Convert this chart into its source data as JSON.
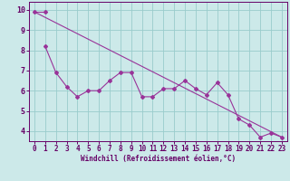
{
  "background_color": "#cce9e9",
  "grid_color": "#99cccc",
  "line_color": "#993399",
  "marker_color": "#993399",
  "xlabel": "Windchill (Refroidissement éolien,°C)",
  "xlabel_color": "#660066",
  "tick_color": "#660066",
  "spine_color": "#660066",
  "ylim": [
    3.5,
    10.4
  ],
  "xlim": [
    -0.5,
    23.5
  ],
  "yticks": [
    4,
    5,
    6,
    7,
    8,
    9,
    10
  ],
  "xticks": [
    0,
    1,
    2,
    3,
    4,
    5,
    6,
    7,
    8,
    9,
    10,
    11,
    12,
    13,
    14,
    15,
    16,
    17,
    18,
    19,
    20,
    21,
    22,
    23
  ],
  "series1_x": [
    0,
    1
  ],
  "series1_y": [
    9.9,
    9.9
  ],
  "series2_x": [
    1,
    2,
    3,
    4,
    5,
    6,
    7,
    8,
    9,
    10,
    11,
    12,
    13,
    14,
    15,
    16,
    17,
    18,
    19,
    20,
    21,
    22,
    23
  ],
  "series2_y": [
    8.2,
    6.9,
    6.2,
    5.7,
    6.0,
    6.0,
    6.5,
    6.9,
    6.9,
    5.7,
    5.7,
    6.1,
    6.1,
    6.5,
    6.1,
    5.8,
    6.4,
    5.8,
    4.6,
    4.3,
    3.7,
    3.9,
    3.7
  ],
  "trend_x": [
    0,
    23
  ],
  "trend_y": [
    9.9,
    3.7
  ],
  "tick_fontsize": 5.5,
  "xlabel_fontsize": 5.5,
  "linewidth": 0.8,
  "markersize": 2.0
}
